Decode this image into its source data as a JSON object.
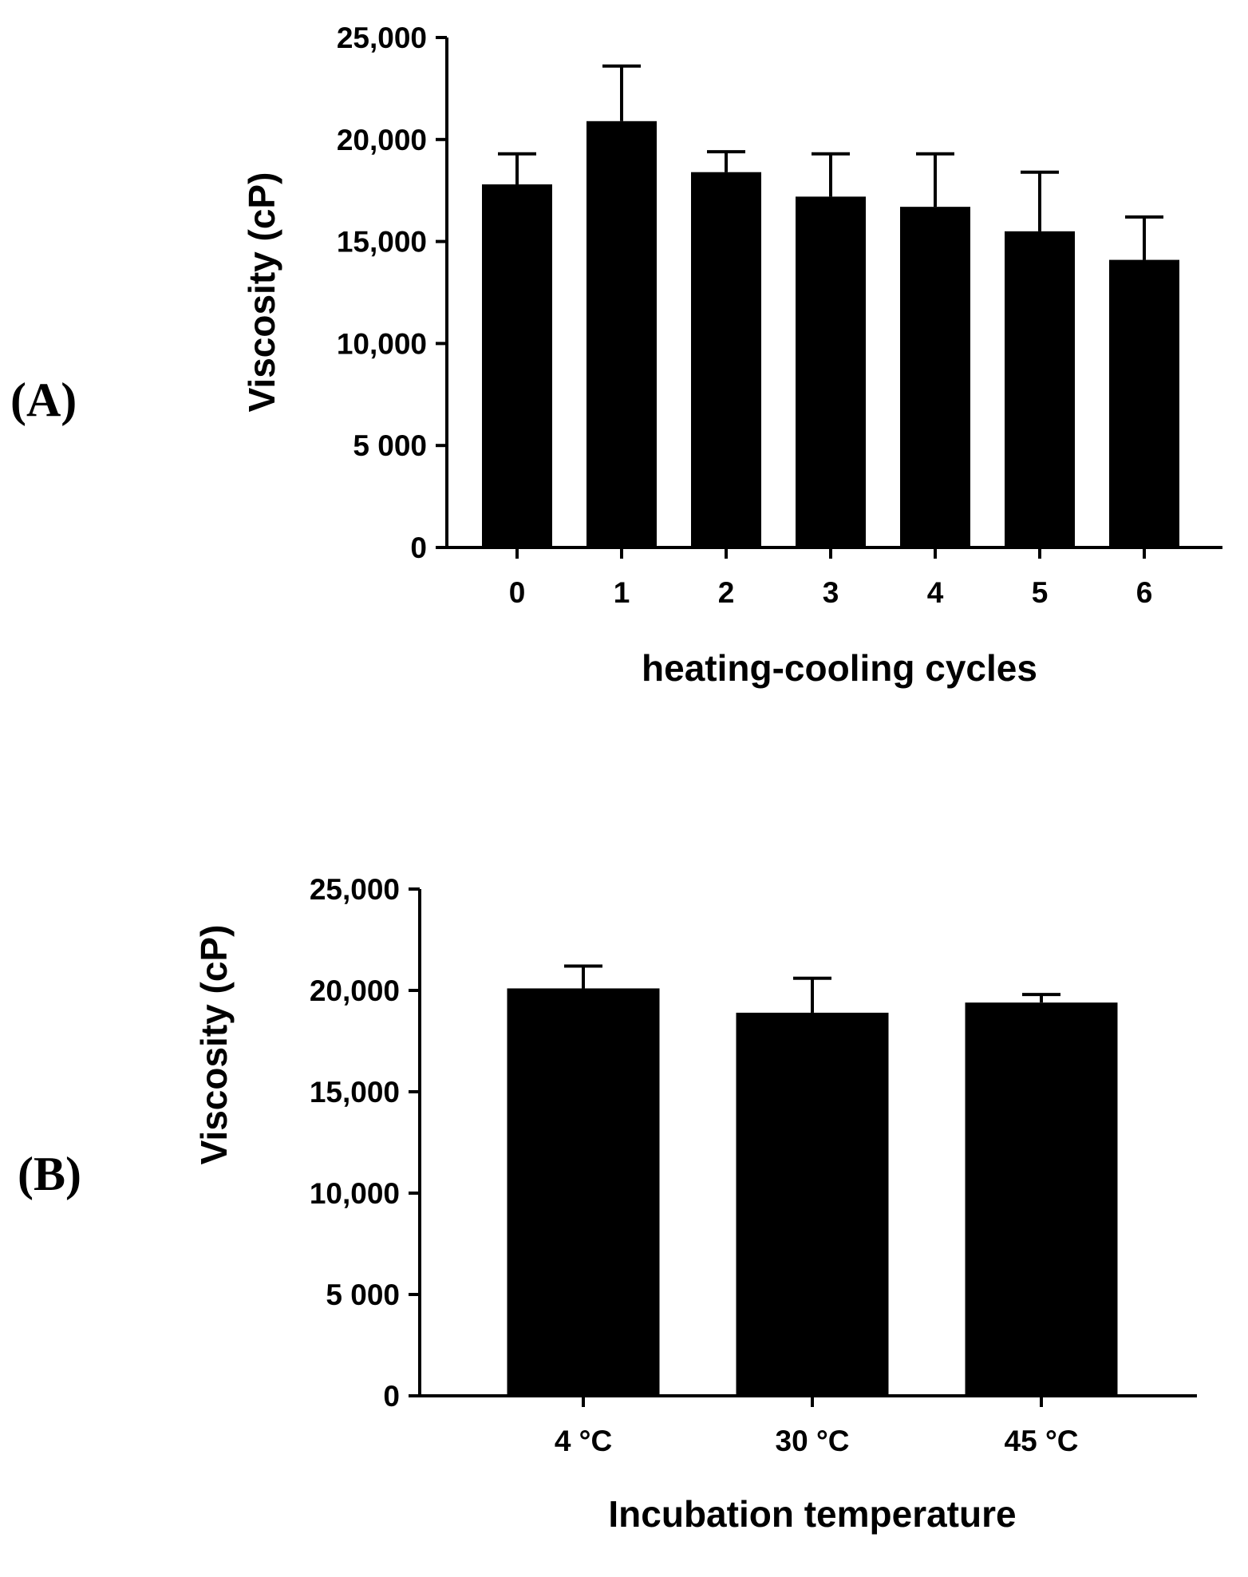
{
  "colors": {
    "bar": "#000000",
    "axis": "#000000",
    "background": "#ffffff"
  },
  "chart_data": [
    {
      "panel": "(A)",
      "type": "bar",
      "title": "",
      "xlabel": "heating-cooling cycles",
      "ylabel": "Viscosity (cP)",
      "ylim": [
        0,
        25000
      ],
      "yticks": [
        0,
        5000,
        10000,
        15000,
        20000,
        25000
      ],
      "ytick_labels": [
        "0",
        "5 000",
        "10,000",
        "15,000",
        "20,000",
        "25,000"
      ],
      "categories": [
        "0",
        "1",
        "2",
        "3",
        "4",
        "5",
        "6"
      ],
      "values": [
        17800,
        20900,
        18400,
        17200,
        16700,
        15500,
        14100
      ],
      "errors": [
        1500,
        2700,
        1000,
        2100,
        2600,
        2900,
        2100
      ],
      "grid": false
    },
    {
      "panel": "(B)",
      "type": "bar",
      "title": "",
      "xlabel": "Incubation temperature",
      "ylabel": "Viscosity (cP)",
      "ylim": [
        0,
        25000
      ],
      "yticks": [
        0,
        5000,
        10000,
        15000,
        20000,
        25000
      ],
      "ytick_labels": [
        "0",
        "5 000",
        "10,000",
        "15,000",
        "20,000",
        "25,000"
      ],
      "categories": [
        "4 °C",
        "30 °C",
        "45 °C"
      ],
      "values": [
        20100,
        18900,
        19400
      ],
      "errors": [
        1100,
        1700,
        400
      ],
      "grid": false
    }
  ]
}
